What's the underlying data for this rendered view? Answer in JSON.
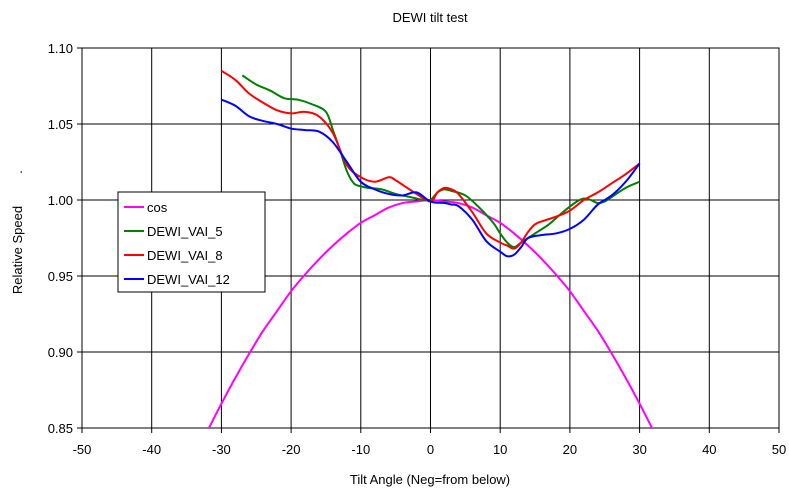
{
  "chart_data": {
    "type": "line",
    "title": "DEWI tilt test",
    "xlabel": "Tilt Angle (Neg=from below)",
    "ylabel": "Relative Speed",
    "ylabel_prefix": ".",
    "xlim": [
      -50,
      50
    ],
    "ylim": [
      0.85,
      1.1
    ],
    "xticks": [
      -50,
      -40,
      -30,
      -20,
      -10,
      0,
      10,
      20,
      30,
      40,
      50
    ],
    "yticks": [
      0.85,
      0.9,
      0.95,
      1.0,
      1.05,
      1.1
    ],
    "ytick_labels": [
      "0.85",
      "0.90",
      "0.95",
      "1.00",
      "1.05",
      "1.10"
    ],
    "grid": true,
    "legend_position": "middle-left",
    "series": [
      {
        "name": "cos",
        "color": "#ff00ff",
        "x": [
          -32,
          -30,
          -28,
          -26,
          -24,
          -22,
          -20,
          -18,
          -16,
          -14,
          -12,
          -10,
          -8,
          -6,
          -4,
          -2,
          0,
          2,
          4,
          6,
          8,
          10,
          12,
          14,
          16,
          18,
          20,
          22,
          24,
          26,
          28,
          30,
          32
        ],
        "y": [
          0.848,
          0.866,
          0.883,
          0.899,
          0.914,
          0.927,
          0.94,
          0.951,
          0.961,
          0.97,
          0.978,
          0.985,
          0.99,
          0.995,
          0.998,
          0.999,
          1.0,
          0.999,
          0.998,
          0.995,
          0.99,
          0.985,
          0.978,
          0.97,
          0.961,
          0.951,
          0.94,
          0.927,
          0.914,
          0.899,
          0.883,
          0.866,
          0.848
        ]
      },
      {
        "name": "DEWI_VAI_5",
        "color": "#008000",
        "x": [
          -27,
          -25,
          -23,
          -21,
          -19,
          -17,
          -15,
          -14,
          -13,
          -12,
          -11,
          -10,
          -9,
          -7,
          -5,
          -3,
          -2,
          -1,
          0,
          1,
          2,
          3,
          5,
          7,
          9,
          10,
          11,
          12,
          13,
          15,
          17,
          19,
          21,
          22,
          23,
          24,
          25,
          26,
          28,
          30
        ],
        "y": [
          1.082,
          1.076,
          1.072,
          1.067,
          1.066,
          1.063,
          1.058,
          1.046,
          1.033,
          1.019,
          1.011,
          1.009,
          1.008,
          1.007,
          1.004,
          1.002,
          1.001,
          1.0,
          1.0,
          1.005,
          1.007,
          1.006,
          1.003,
          0.995,
          0.985,
          0.978,
          0.972,
          0.969,
          0.972,
          0.978,
          0.984,
          0.992,
          0.999,
          1.001,
          1.0,
          0.998,
          0.999,
          1.002,
          1.008,
          1.012
        ]
      },
      {
        "name": "DEWI_VAI_8",
        "color": "#ff0000",
        "x": [
          -30,
          -28,
          -26,
          -24,
          -22,
          -20,
          -18,
          -16,
          -14,
          -12,
          -10,
          -8,
          -6,
          -5,
          -4,
          -2,
          0,
          1,
          2,
          3,
          4,
          6,
          8,
          10,
          11,
          12,
          13,
          14,
          15,
          16,
          18,
          20,
          22,
          24,
          26,
          28,
          30
        ],
        "y": [
          1.085,
          1.079,
          1.07,
          1.064,
          1.059,
          1.057,
          1.058,
          1.055,
          1.044,
          1.023,
          1.015,
          1.012,
          1.015,
          1.013,
          1.01,
          1.004,
          0.999,
          1.005,
          1.008,
          1.007,
          1.004,
          0.992,
          0.978,
          0.972,
          0.97,
          0.968,
          0.972,
          0.979,
          0.984,
          0.986,
          0.989,
          0.993,
          1.0,
          1.005,
          1.011,
          1.017,
          1.024
        ]
      },
      {
        "name": "DEWI_VAI_12",
        "color": "#0000ff",
        "x": [
          -30,
          -28,
          -26,
          -24,
          -22,
          -20,
          -18,
          -16,
          -14,
          -12,
          -10,
          -8,
          -6,
          -4,
          -2,
          0,
          2,
          3,
          4,
          6,
          8,
          10,
          11,
          12,
          13,
          14,
          16,
          18,
          20,
          22,
          24,
          26,
          28,
          30
        ],
        "y": [
          1.066,
          1.062,
          1.055,
          1.052,
          1.05,
          1.047,
          1.046,
          1.045,
          1.038,
          1.025,
          1.012,
          1.007,
          1.004,
          1.003,
          1.005,
          0.999,
          0.998,
          0.997,
          0.996,
          0.987,
          0.973,
          0.966,
          0.963,
          0.964,
          0.969,
          0.975,
          0.977,
          0.978,
          0.981,
          0.987,
          0.997,
          1.003,
          1.012,
          1.024
        ]
      }
    ]
  }
}
